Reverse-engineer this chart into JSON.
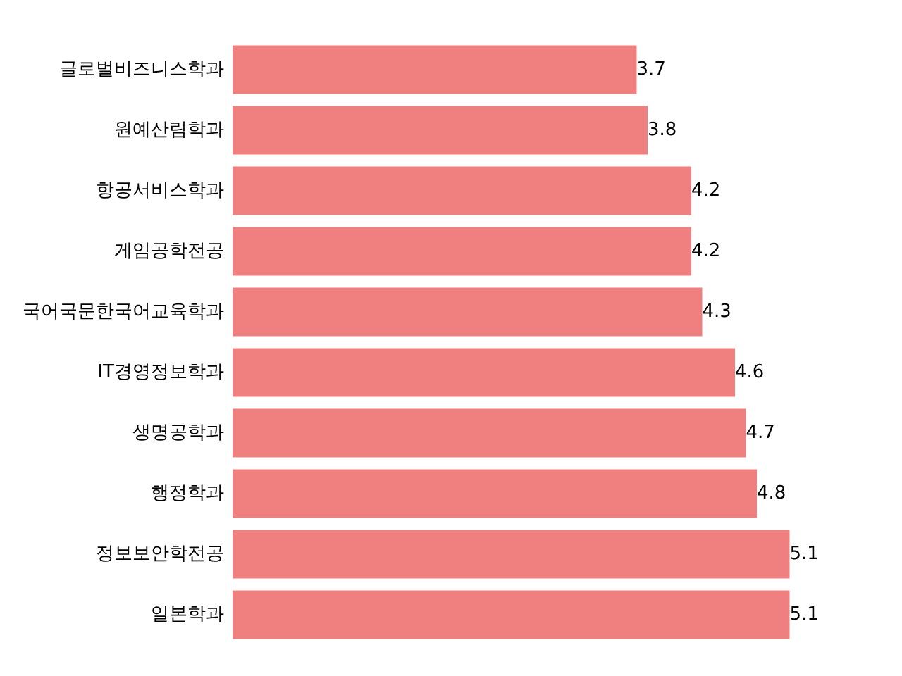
{
  "chart_data": {
    "type": "bar",
    "orientation": "horizontal",
    "categories": [
      "글로벌비즈니스학과",
      "원예산림학과",
      "항공서비스학과",
      "게임공학전공",
      "국어국문한국어교육학과",
      "IT경영정보학과",
      "생명공학과",
      "행정학과",
      "정보보안학전공",
      "일본학과"
    ],
    "values": [
      3.7,
      3.8,
      4.2,
      4.2,
      4.3,
      4.6,
      4.7,
      4.8,
      5.1,
      5.1
    ],
    "color": "#f08080",
    "tick_labels": "y",
    "grid": false,
    "legend": false,
    "data_labels": true
  }
}
